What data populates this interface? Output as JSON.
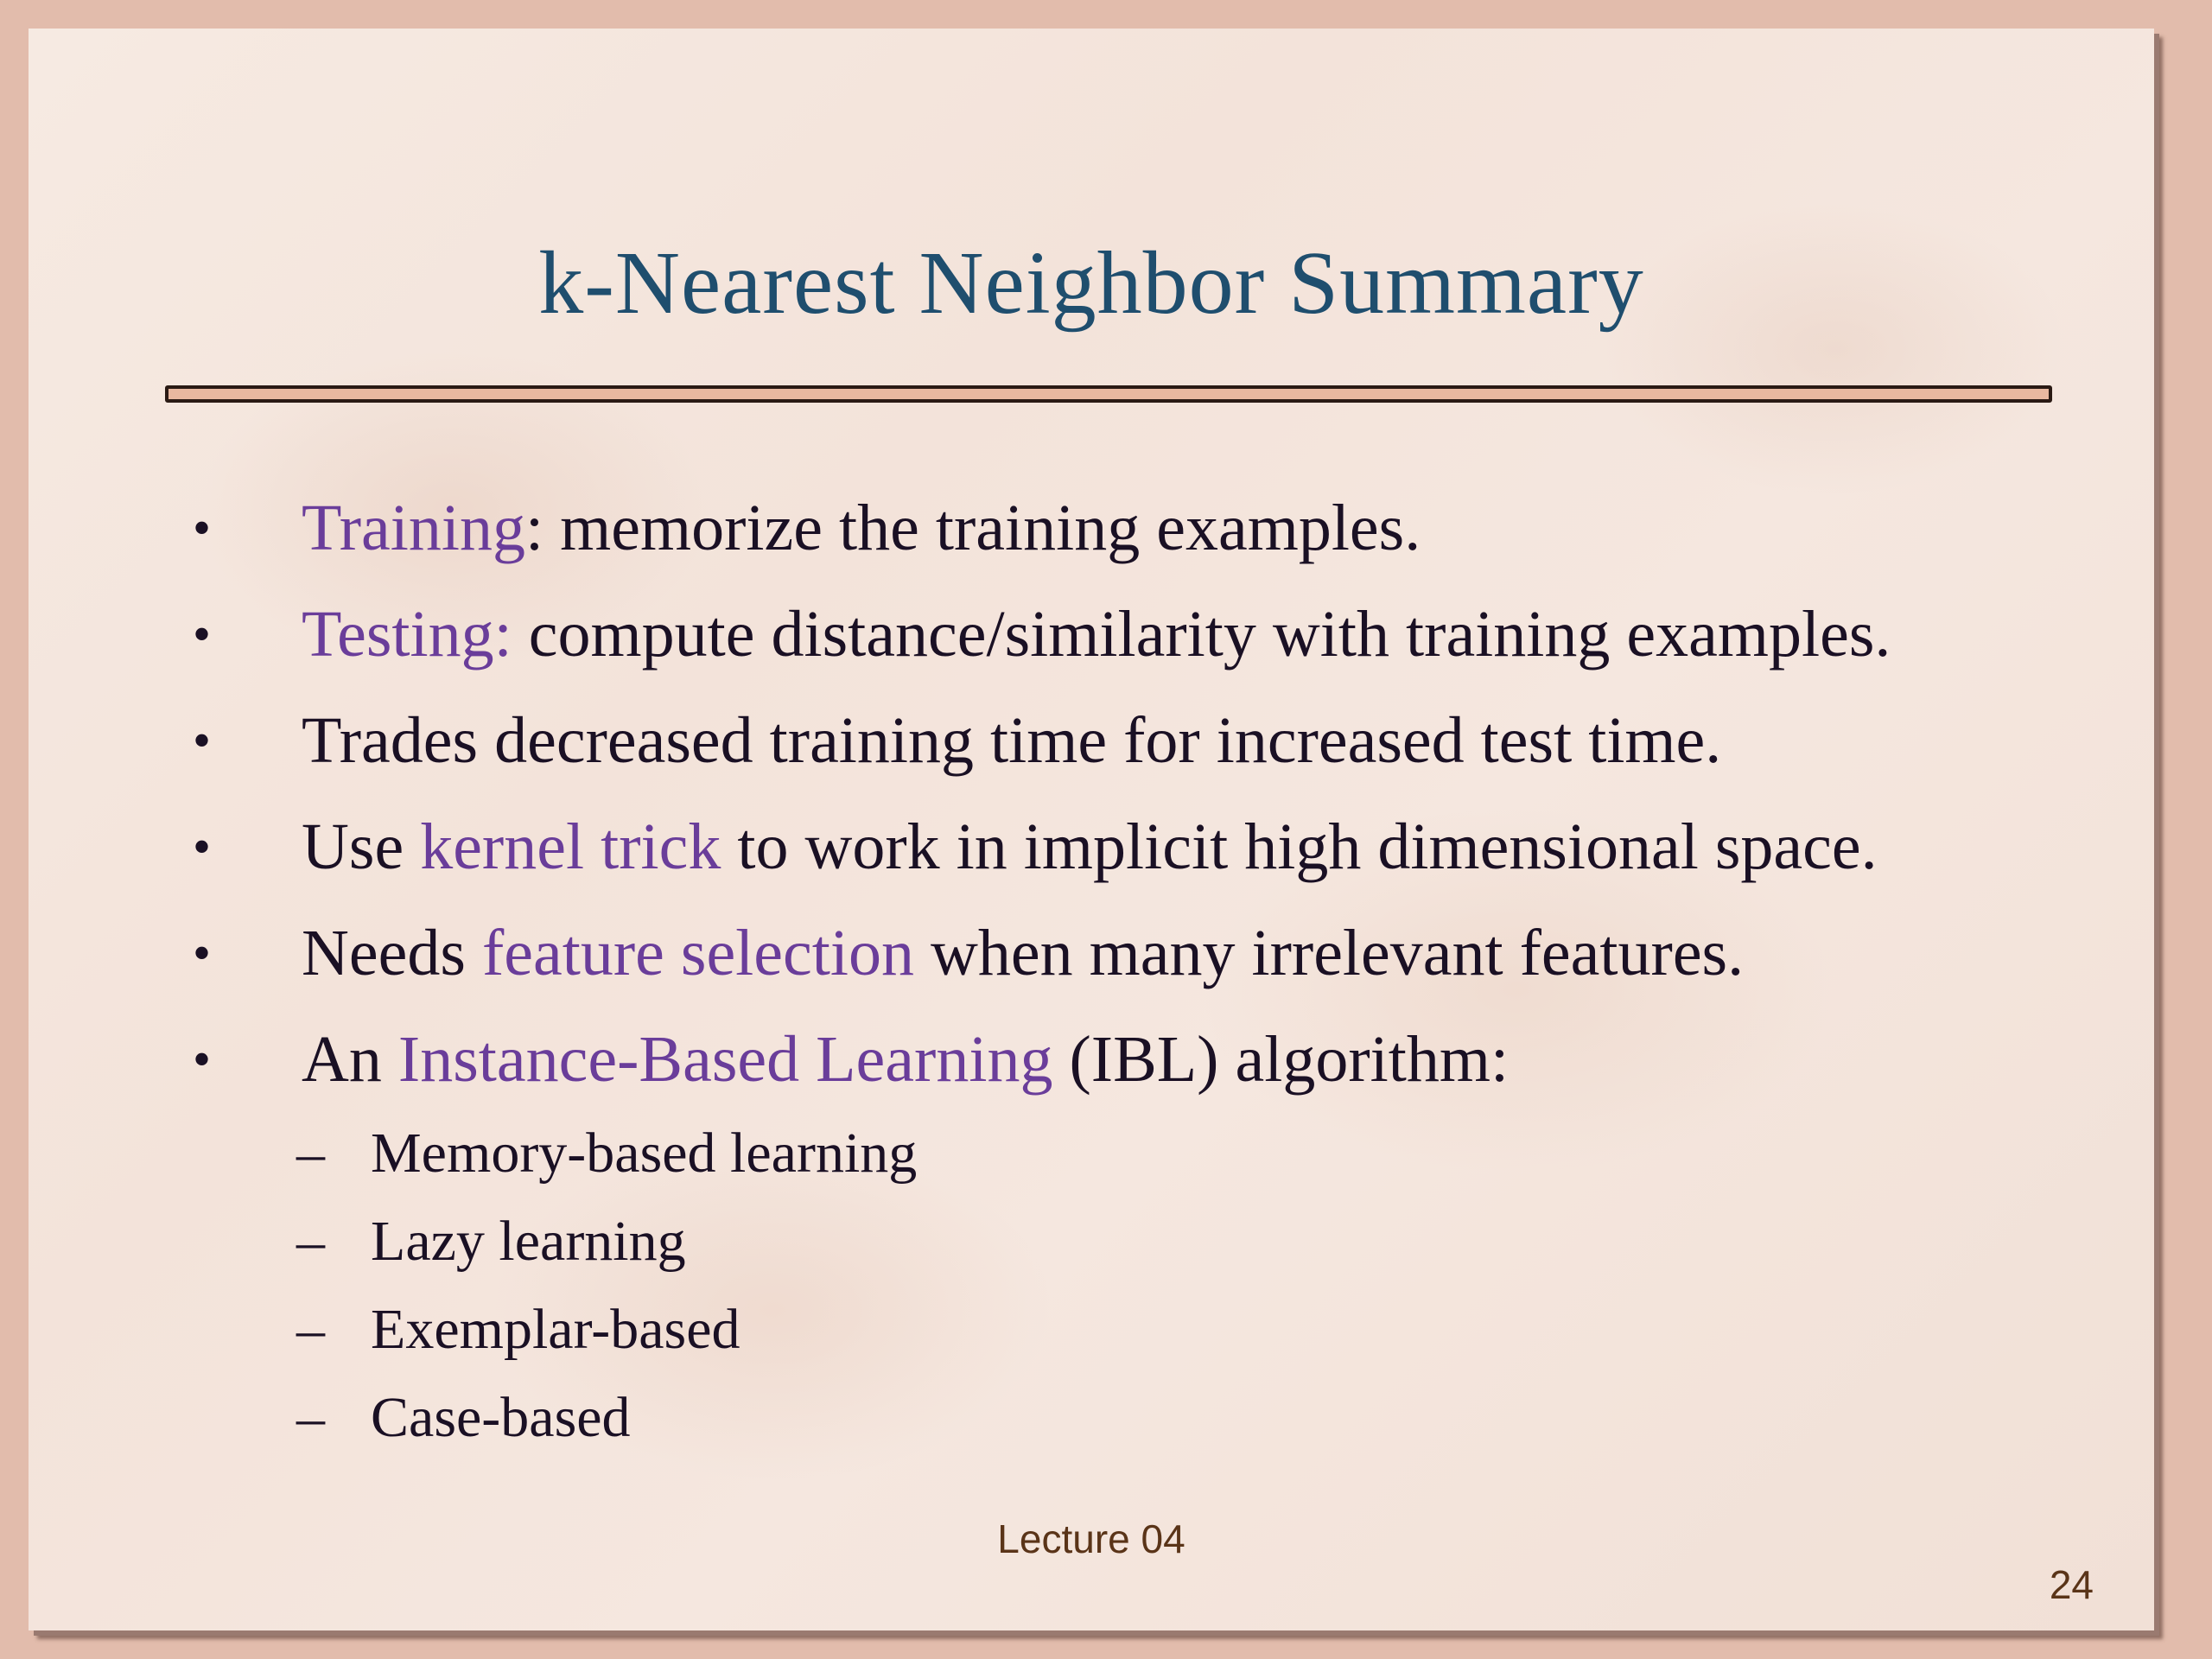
{
  "slide": {
    "title": "k-Nearest Neighbor Summary",
    "bullets": [
      {
        "parts": [
          {
            "text": "Training",
            "highlight": true
          },
          {
            "text": ": memorize the training examples.",
            "highlight": false
          }
        ]
      },
      {
        "parts": [
          {
            "text": "Testing:",
            "highlight": true
          },
          {
            "text": " compute distance/similarity with training examples.",
            "highlight": false
          }
        ]
      },
      {
        "parts": [
          {
            "text": "Trades decreased training time for increased test time.",
            "highlight": false
          }
        ]
      },
      {
        "parts": [
          {
            "text": "Use ",
            "highlight": false
          },
          {
            "text": "kernel trick",
            "highlight": true
          },
          {
            "text": " to work in implicit high dimensional space.",
            "highlight": false
          }
        ]
      },
      {
        "parts": [
          {
            "text": "Needs ",
            "highlight": false
          },
          {
            "text": "feature selection",
            "highlight": true
          },
          {
            "text": " when many irrelevant features.",
            "highlight": false
          }
        ]
      },
      {
        "parts": [
          {
            "text": "An ",
            "highlight": false
          },
          {
            "text": "Instance-Based Learning",
            "highlight": true
          },
          {
            "text": " (IBL) algorithm:",
            "highlight": false
          }
        ]
      }
    ],
    "bullet_symbol": "•",
    "sub_symbol": "–",
    "sub_bullets": [
      "Memory-based learning",
      "Lazy learning",
      "Exemplar-based",
      "Case-based"
    ],
    "footer": "Lecture 04",
    "page_number": "24"
  },
  "colors": {
    "title": "#1f4e6e",
    "highlight": "#6a3d9a",
    "body_text": "#1a1024",
    "footer": "#5a3418"
  }
}
